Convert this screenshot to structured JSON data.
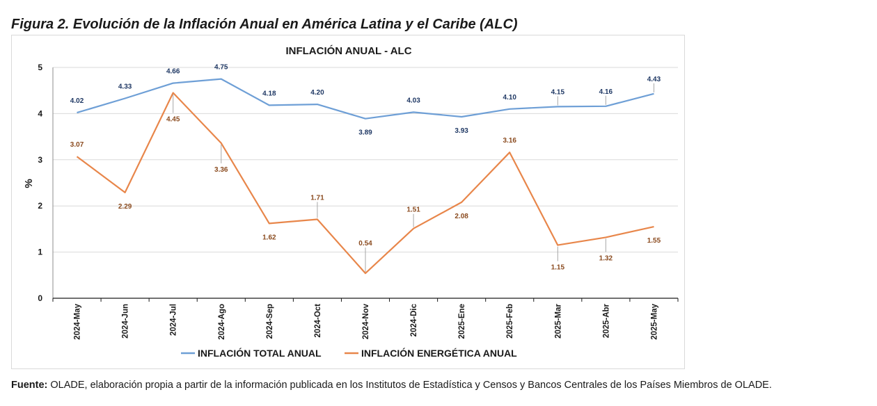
{
  "figure": {
    "title": "Figura 2. Evolución de la Inflación Anual en América Latina y el Caribe (ALC)"
  },
  "source": {
    "label": "Fuente:",
    "text": " OLADE, elaboración propia a partir de la información publicada en los Institutos de Estadística y Censos y Bancos Centrales de los Países Miembros de OLADE."
  },
  "chart_data": {
    "type": "line",
    "title": "INFLACIÓN ANUAL - ALC",
    "xlabel": "",
    "ylabel": "%",
    "ylim": [
      0,
      5
    ],
    "yticks": [
      0,
      1,
      2,
      3,
      4,
      5
    ],
    "grid": true,
    "legend_position": "bottom",
    "categories": [
      "2024-May",
      "2024-Jun",
      "2024-Jul",
      "2024-Ago",
      "2024-Sep",
      "2024-Oct",
      "2024-Nov",
      "2024-Dic",
      "2025-Ene",
      "2025-Feb",
      "2025-Mar",
      "2025-Abr",
      "2025-May"
    ],
    "series": [
      {
        "name": "INFLACIÓN TOTAL ANUAL",
        "color": "#6e9fd6",
        "label_color": "#1f3864",
        "values": [
          4.02,
          4.33,
          4.66,
          4.75,
          4.18,
          4.2,
          3.89,
          4.03,
          3.93,
          4.1,
          4.15,
          4.16,
          4.43
        ],
        "labels": [
          "4.02",
          "4.33",
          "4.66",
          "4.75",
          "4.18",
          "4.20",
          "3.89",
          "4.03",
          "3.93",
          "4.10",
          "4.15",
          "4.16",
          "4.43"
        ]
      },
      {
        "name": "INFLACIÓN ENERGÉTICA ANUAL",
        "color": "#e8864a",
        "label_color": "#8a4a1e",
        "values": [
          3.07,
          2.29,
          4.45,
          3.36,
          1.62,
          1.71,
          0.54,
          1.51,
          2.08,
          3.16,
          1.15,
          1.32,
          1.55
        ],
        "labels": [
          "3.07",
          "2.29",
          "4.45",
          "3.36",
          "1.62",
          "1.71",
          "0.54",
          "1.51",
          "2.08",
          "3.16",
          "1.15",
          "1.32",
          "1.55"
        ]
      }
    ]
  }
}
